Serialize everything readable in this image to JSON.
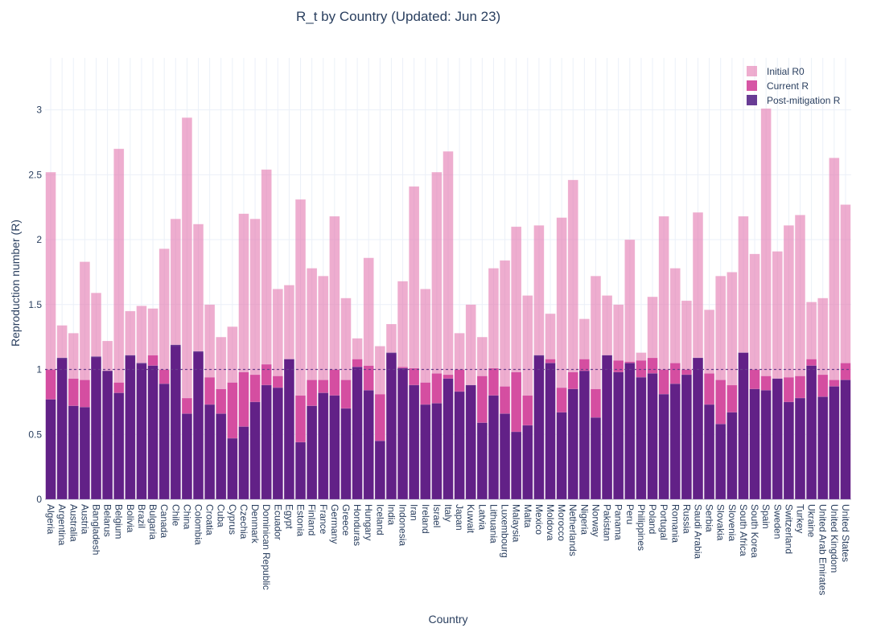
{
  "chart_data": {
    "type": "bar",
    "title": "R_t by Country (Updated: Jun 23)",
    "xlabel": "Country",
    "ylabel": "Reproduction number (R)",
    "ylim": [
      0,
      3.4
    ],
    "yticks": [
      0,
      0.5,
      1,
      1.5,
      2,
      2.5,
      3
    ],
    "barmode": "overlay",
    "grid": true,
    "legend_position": "top-right",
    "reference_line": 1,
    "categories": [
      "Algeria",
      "Argentina",
      "Australia",
      "Austria",
      "Bangladesh",
      "Belarus",
      "Belgium",
      "Bolivia",
      "Brazil",
      "Bulgaria",
      "Canada",
      "Chile",
      "China",
      "Colombia",
      "Croatia",
      "Cuba",
      "Cyprus",
      "Czechia",
      "Denmark",
      "Dominican Republic",
      "Ecuador",
      "Egypt",
      "Estonia",
      "Finland",
      "France",
      "Germany",
      "Greece",
      "Honduras",
      "Hungary",
      "Iceland",
      "India",
      "Indonesia",
      "Iran",
      "Ireland",
      "Israel",
      "Italy",
      "Japan",
      "Kuwait",
      "Latvia",
      "Lithuania",
      "Luxembourg",
      "Malaysia",
      "Malta",
      "Mexico",
      "Moldova",
      "Morocco",
      "Netherlands",
      "Nigeria",
      "Norway",
      "Pakistan",
      "Panama",
      "Peru",
      "Philippines",
      "Poland",
      "Portugal",
      "Romania",
      "Russia",
      "Saudi Arabia",
      "Serbia",
      "Slovakia",
      "Slovenia",
      "South Africa",
      "South Korea",
      "Spain",
      "Sweden",
      "Switzerland",
      "Turkey",
      "Ukraine",
      "United Arab Emirates",
      "United Kingdom",
      "United States"
    ],
    "series": [
      {
        "name": "Initial R0",
        "color": "#e377af",
        "opacity": 0.6,
        "values": [
          2.52,
          1.34,
          1.28,
          1.83,
          1.59,
          1.22,
          2.7,
          1.45,
          1.49,
          1.47,
          1.93,
          2.16,
          2.94,
          2.12,
          1.5,
          1.25,
          1.33,
          2.2,
          2.16,
          2.54,
          1.62,
          1.65,
          2.31,
          1.78,
          1.72,
          2.18,
          1.55,
          1.24,
          1.86,
          1.18,
          1.35,
          1.68,
          2.41,
          1.62,
          2.52,
          2.68,
          1.28,
          1.5,
          1.25,
          1.78,
          1.84,
          2.1,
          1.57,
          2.11,
          1.43,
          2.17,
          2.46,
          1.39,
          1.72,
          1.57,
          1.5,
          2.0,
          1.13,
          1.56,
          2.18,
          1.78,
          1.53,
          2.21,
          1.46,
          1.72,
          1.75,
          2.18,
          1.89,
          3.01,
          1.91,
          2.11,
          2.19,
          1.52,
          1.55,
          2.63,
          2.27
        ]
      },
      {
        "name": "Current R",
        "color": "#d2449b",
        "opacity": 0.9,
        "values": [
          1.0,
          1.08,
          0.93,
          0.92,
          1.09,
          0.99,
          0.9,
          1.1,
          1.04,
          1.11,
          1.0,
          1.18,
          0.78,
          1.13,
          0.94,
          0.85,
          0.9,
          0.98,
          0.96,
          1.04,
          0.95,
          1.08,
          0.8,
          0.92,
          0.92,
          1.0,
          0.92,
          1.08,
          1.03,
          0.81,
          1.12,
          1.02,
          1.01,
          0.9,
          0.97,
          0.96,
          1.0,
          0.88,
          0.95,
          1.01,
          0.87,
          0.98,
          0.8,
          1.1,
          1.08,
          0.86,
          0.98,
          1.08,
          0.85,
          1.11,
          1.07,
          1.06,
          1.07,
          1.09,
          1.0,
          1.05,
          1.0,
          1.09,
          0.97,
          0.92,
          0.88,
          1.13,
          1.0,
          0.95,
          0.93,
          0.94,
          0.95,
          1.08,
          0.96,
          0.92,
          1.05
        ]
      },
      {
        "name": "Post-mitigation R",
        "color": "#4e1a82",
        "opacity": 0.85,
        "values": [
          0.77,
          1.09,
          0.72,
          0.71,
          1.1,
          0.99,
          0.82,
          1.11,
          1.05,
          1.03,
          0.89,
          1.19,
          0.66,
          1.14,
          0.73,
          0.66,
          0.47,
          0.56,
          0.75,
          0.88,
          0.86,
          1.08,
          0.44,
          0.72,
          0.82,
          0.8,
          0.7,
          1.02,
          0.84,
          0.45,
          1.13,
          1.01,
          0.88,
          0.73,
          0.74,
          0.93,
          0.83,
          0.88,
          0.59,
          0.8,
          0.66,
          0.52,
          0.57,
          1.11,
          1.05,
          0.67,
          0.85,
          0.99,
          0.63,
          1.11,
          0.98,
          1.05,
          0.94,
          0.97,
          0.81,
          0.89,
          0.96,
          1.09,
          0.73,
          0.58,
          0.67,
          1.13,
          0.85,
          0.84,
          0.93,
          0.75,
          0.78,
          1.03,
          0.79,
          0.87,
          0.92
        ]
      }
    ]
  }
}
